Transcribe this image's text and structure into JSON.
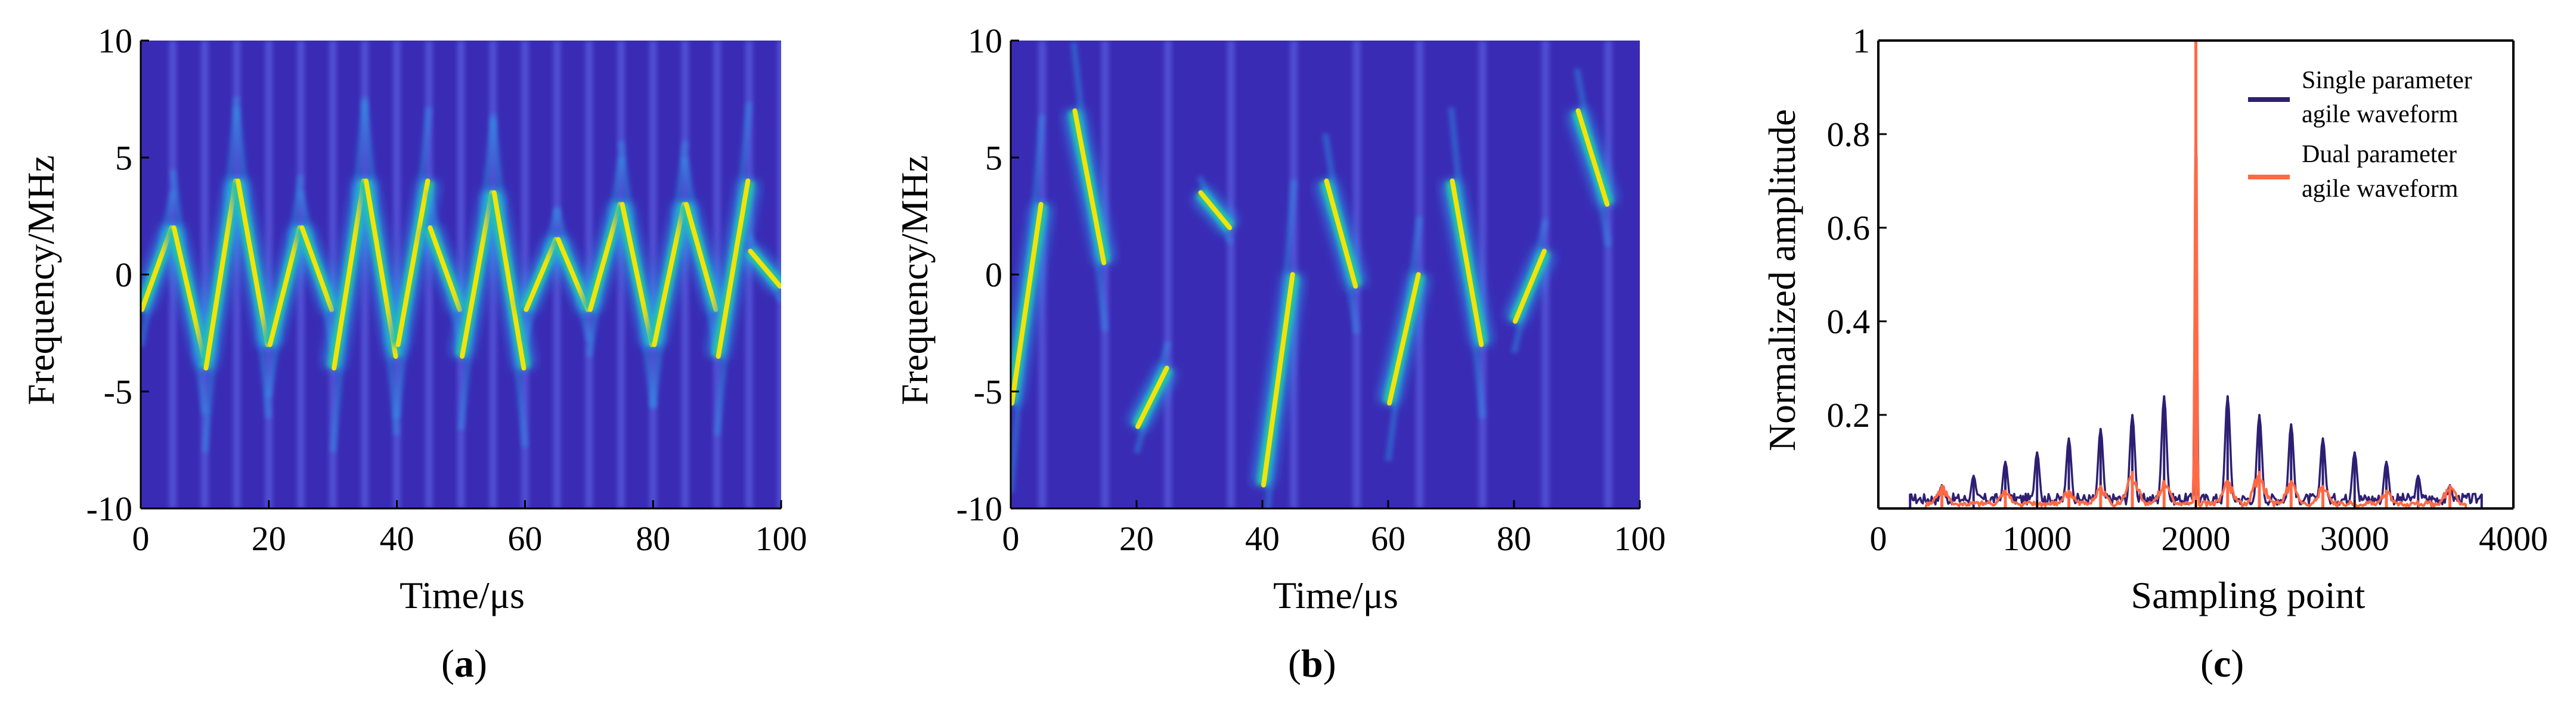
{
  "colors": {
    "background": "#3a2bb5",
    "stripe": "#5a5fe0",
    "chirp_core": "#f2e30a",
    "chirp_mid": "#22c9a0",
    "chirp_outer": "#2b9ee8",
    "single_param": "#2e1f74",
    "dual_param": "#ff6a45"
  },
  "chart_data": [
    {
      "id": "a",
      "type": "heatmap",
      "sublabel_pre": "(",
      "sublabel": "a",
      "sublabel_post": ")",
      "xlabel": "Time/μs",
      "ylabel": "Frequency/MHz",
      "xlim": [
        0,
        100
      ],
      "ylim": [
        -10,
        10
      ],
      "xticks": [
        0,
        20,
        40,
        60,
        80,
        100
      ],
      "yticks": [
        -10,
        -5,
        0,
        5,
        10
      ],
      "pulse_width_us": 5,
      "pulses": [
        {
          "t0": 0,
          "f_start": -1.5,
          "f_end": 2.0
        },
        {
          "t0": 5,
          "f_start": 2.0,
          "f_end": -3.5
        },
        {
          "t0": 10,
          "f_start": -4.0,
          "f_end": 4.0
        },
        {
          "t0": 15,
          "f_start": 4.0,
          "f_end": -3.0
        },
        {
          "t0": 20,
          "f_start": -3.0,
          "f_end": 2.0
        },
        {
          "t0": 25,
          "f_start": 2.0,
          "f_end": -1.5
        },
        {
          "t0": 30,
          "f_start": -4.0,
          "f_end": 4.0
        },
        {
          "t0": 35,
          "f_start": 4.0,
          "f_end": -3.5
        },
        {
          "t0": 40,
          "f_start": -3.0,
          "f_end": 4.0
        },
        {
          "t0": 45,
          "f_start": 2.0,
          "f_end": -1.5
        },
        {
          "t0": 50,
          "f_start": -3.5,
          "f_end": 3.5
        },
        {
          "t0": 55,
          "f_start": 3.5,
          "f_end": -4.0
        },
        {
          "t0": 60,
          "f_start": -1.5,
          "f_end": 1.5
        },
        {
          "t0": 65,
          "f_start": 1.5,
          "f_end": -1.5
        },
        {
          "t0": 70,
          "f_start": -1.5,
          "f_end": 3.0
        },
        {
          "t0": 75,
          "f_start": 3.0,
          "f_end": -3.0
        },
        {
          "t0": 80,
          "f_start": -3.0,
          "f_end": 3.0
        },
        {
          "t0": 85,
          "f_start": 3.0,
          "f_end": -1.5
        },
        {
          "t0": 90,
          "f_start": -3.5,
          "f_end": 4.0
        },
        {
          "t0": 95,
          "f_start": 1.0,
          "f_end": -0.5
        }
      ]
    },
    {
      "id": "b",
      "type": "heatmap",
      "sublabel_pre": "(",
      "sublabel": "b",
      "sublabel_post": ")",
      "xlabel": "Time/μs",
      "ylabel": "Frequency/MHz",
      "xlim": [
        0,
        100
      ],
      "ylim": [
        -10,
        10
      ],
      "xticks": [
        0,
        20,
        40,
        60,
        80,
        100
      ],
      "yticks": [
        -10,
        -5,
        0,
        5,
        10
      ],
      "pulse_width_us": 5,
      "pulses": [
        {
          "t0": 0,
          "f_start": -5.5,
          "f_end": 3.0
        },
        {
          "t0": 10,
          "f_start": 7.0,
          "f_end": 0.5
        },
        {
          "t0": 20,
          "f_start": -6.5,
          "f_end": -4.0
        },
        {
          "t0": 30,
          "f_start": 3.5,
          "f_end": 2.0
        },
        {
          "t0": 40,
          "f_start": -9.0,
          "f_end": 0.0
        },
        {
          "t0": 50,
          "f_start": 4.0,
          "f_end": -0.5
        },
        {
          "t0": 60,
          "f_start": -5.5,
          "f_end": 0.0
        },
        {
          "t0": 70,
          "f_start": 4.0,
          "f_end": -3.0
        },
        {
          "t0": 80,
          "f_start": -2.0,
          "f_end": 1.0
        },
        {
          "t0": 90,
          "f_start": 7.0,
          "f_end": 3.0
        }
      ]
    },
    {
      "id": "c",
      "type": "line",
      "sublabel_pre": "(",
      "sublabel": "c",
      "sublabel_post": ")",
      "xlabel": "Sampling point",
      "ylabel": "Normalized amplitude",
      "xlim": [
        0,
        4000
      ],
      "ylim": [
        0,
        1
      ],
      "xticks": [
        0,
        1000,
        2000,
        3000,
        4000
      ],
      "yticks": [
        0.2,
        0.4,
        0.6,
        0.8,
        1
      ],
      "legend_position": "top-right",
      "series": [
        {
          "name": "Single parameter agile waveform",
          "name_line1": "Single parameter",
          "name_line2": "agile waveform",
          "peaks_x": [
            200,
            400,
            600,
            800,
            1000,
            1200,
            1400,
            1600,
            1800,
            2000,
            2200,
            2400,
            2600,
            2800,
            3000,
            3200,
            3400,
            3600,
            3800
          ],
          "peaks_y": [
            0.03,
            0.05,
            0.07,
            0.1,
            0.12,
            0.15,
            0.17,
            0.2,
            0.24,
            1.0,
            0.24,
            0.2,
            0.18,
            0.15,
            0.12,
            0.1,
            0.07,
            0.05,
            0.03
          ],
          "floor_y": 0.02,
          "support": [
            200,
            3800
          ]
        },
        {
          "name": "Dual parameter agile waveform",
          "name_line1": "Dual parameter",
          "name_line2": "agile waveform",
          "peaks_x": [
            400,
            800,
            1200,
            1400,
            1600,
            1800,
            2000,
            2200,
            2400,
            2600,
            2800,
            3200,
            3600
          ],
          "peaks_y": [
            0.05,
            0.04,
            0.04,
            0.05,
            0.08,
            0.06,
            1.0,
            0.06,
            0.08,
            0.06,
            0.05,
            0.04,
            0.05
          ],
          "floor_y": 0.01,
          "support": [
            300,
            3700
          ]
        }
      ]
    }
  ]
}
